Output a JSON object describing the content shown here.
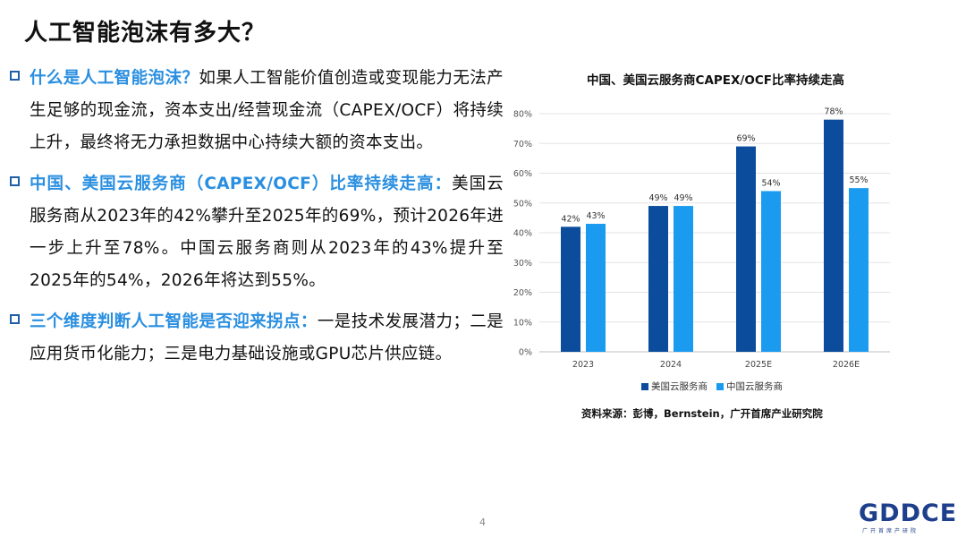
{
  "page": {
    "title": "人工智能泡沫有多大？",
    "page_number": "4"
  },
  "bullets": [
    {
      "head": "什么是人工智能泡沫？",
      "body": "如果人工智能价值创造或变现能力无法产生足够的现金流，资本支出/经营现金流（CAPEX/OCF）将持续上升，最终将无力承担数据中心持续大额的资本支出。"
    },
    {
      "head": "中国、美国云服务商（CAPEX/OCF）比率持续走高：",
      "body": "美国云服务商从2023年的42%攀升至2025年的69%，预计2026年进一步上升至78%。中国云服务商则从2023年的43%提升至2025年的54%，2026年将达到55%。"
    },
    {
      "head": "三个维度判断人工智能是否迎来拐点：",
      "body": "一是技术发展潜力；二是应用货币化能力；三是电力基础设施或GPU芯片供应链。"
    }
  ],
  "chart_data": {
    "type": "bar",
    "title": "中国、美国云服务商CAPEX/OCF比率持续走高",
    "categories": [
      "2023",
      "2024",
      "2025E",
      "2026E"
    ],
    "series": [
      {
        "name": "美国云服务商",
        "values": [
          42,
          49,
          69,
          78
        ],
        "labels": [
          "42%",
          "49%",
          "69%",
          "78%"
        ],
        "color": "#0b4c9c"
      },
      {
        "name": "中国云服务商",
        "values": [
          43,
          49,
          54,
          55
        ],
        "labels": [
          "43%",
          "49%",
          "54%",
          "55%"
        ],
        "color": "#1b9bf0"
      }
    ],
    "ylim": [
      0,
      80
    ],
    "yticks": [
      0,
      10,
      20,
      30,
      40,
      50,
      60,
      70,
      80
    ],
    "ytick_labels": [
      "0%",
      "10%",
      "20%",
      "30%",
      "40%",
      "50%",
      "60%",
      "70%",
      "80%"
    ],
    "grid": true,
    "legend": "bottom",
    "source": "资料来源：彭博，Bernstein，广开首席产业研究院"
  },
  "logo": {
    "text": "GDDCE",
    "subtext": "广开首席产研院"
  },
  "colors": {
    "accent": "#2a8fe0",
    "bullet_box": "#1f5fa8",
    "us_bar": "#0b4c9c",
    "cn_bar": "#1b9bf0"
  }
}
